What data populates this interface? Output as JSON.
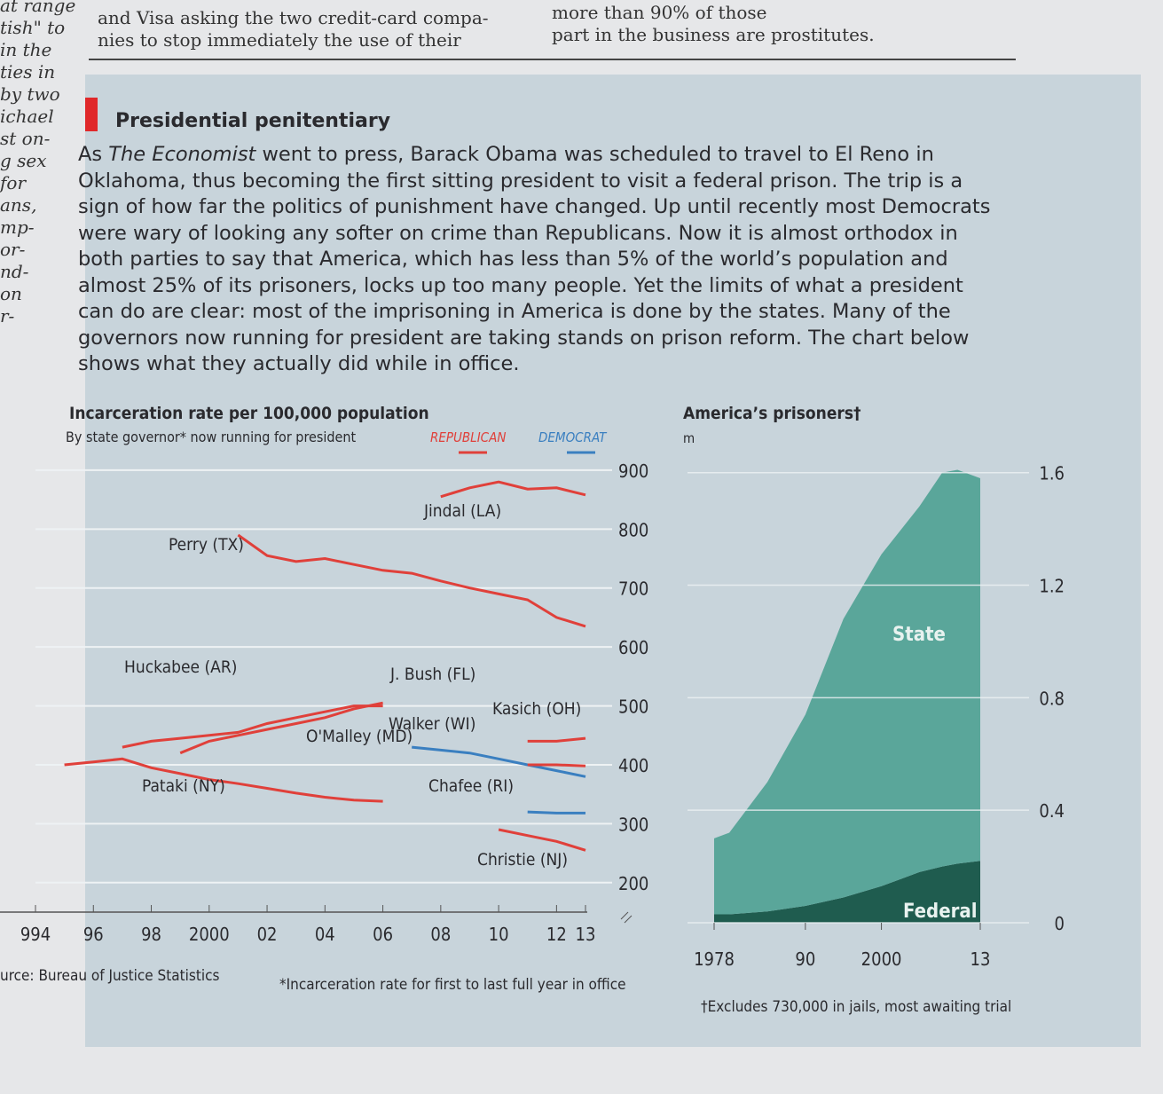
{
  "column_left": [
    "at range",
    "tish\" to",
    "in the",
    "ties in",
    "by two",
    "ichael",
    "st on-",
    "g sex",
    "for",
    "ans,",
    "mp-",
    "or-",
    "nd-",
    "on",
    "r-"
  ],
  "column_middle": [
    "and Visa asking the two credit-card compa-",
    "nies to stop immediately the use of their"
  ],
  "column_right": [
    "more than 90% of those",
    "part in the business are prostitutes."
  ],
  "article": {
    "title": "Presidential penitentiary",
    "body": [
      "As ",
      "The Economist",
      " went to press, Barack Obama was scheduled to travel to El Reno in Oklahoma, thus becoming the first sitting president to visit a federal prison. The trip is a sign of how far the politics of punishment have changed. Up until recently most Democrats were wary of looking any softer on crime than Republicans. Now it is almost orthodox in both parties to say that America, which has less than 5% of the world’s population and almost 25% of its prisoners, locks up too many people. Yet the limits of what a president can do are clear: most of the imprisoning in America is done by the states. Many of the governors now running for president are taking stands on prison reform. The chart below shows what they actually did while in office."
    ]
  },
  "chart_data": [
    {
      "type": "line",
      "title": "Incarceration rate per 100,000 population",
      "subtitle": "By state governor* now running for president",
      "legend": [
        {
          "name": "REPUBLICAN",
          "color": "#e0403a"
        },
        {
          "name": "DEMOCRAT",
          "color": "#3a7fc0"
        }
      ],
      "xlim": [
        1994,
        2013
      ],
      "xticks": [
        {
          "value": 1994,
          "label": "994"
        },
        {
          "value": 1996,
          "label": "96"
        },
        {
          "value": 1998,
          "label": "98"
        },
        2000,
        {
          "value": 2002,
          "label": "02"
        },
        {
          "value": 2004,
          "label": "04"
        },
        {
          "value": 2006,
          "label": "06"
        },
        {
          "value": 2008,
          "label": "08"
        },
        {
          "value": 2010,
          "label": "10"
        },
        {
          "value": 2012,
          "label": "12"
        },
        {
          "value": 2013,
          "label": "13"
        }
      ],
      "ylim": [
        150,
        930
      ],
      "yticks": [
        200,
        300,
        400,
        500,
        600,
        700,
        800,
        900
      ],
      "grid": true,
      "series": [
        {
          "name": "Jindal (LA)",
          "color": "#e0403a",
          "x": [
            2008,
            2009,
            2010,
            2011,
            2012,
            2013
          ],
          "values": [
            855,
            870,
            880,
            868,
            870,
            858
          ]
        },
        {
          "name": "Perry (TX)",
          "color": "#e0403a",
          "x": [
            2001,
            2002,
            2003,
            2004,
            2005,
            2006,
            2007,
            2008,
            2009,
            2010,
            2011,
            2012,
            2013
          ],
          "values": [
            790,
            755,
            745,
            750,
            740,
            730,
            725,
            712,
            700,
            690,
            680,
            650,
            635
          ]
        },
        {
          "name": "Huckabee (AR)",
          "color": "#e0403a",
          "x": [
            1997,
            1998,
            1999,
            2000,
            2001,
            2002,
            2003,
            2004,
            2005,
            2006
          ],
          "values": [
            430,
            440,
            445,
            450,
            455,
            470,
            480,
            490,
            500,
            500
          ]
        },
        {
          "name": "J. Bush (FL)",
          "color": "#e0403a",
          "x": [
            1999,
            2000,
            2001,
            2002,
            2003,
            2004,
            2005,
            2006
          ],
          "values": [
            420,
            440,
            450,
            460,
            470,
            480,
            495,
            505
          ]
        },
        {
          "name": "Pataki (NY)",
          "color": "#e0403a",
          "x": [
            1995,
            1996,
            1997,
            1998,
            1999,
            2000,
            2001,
            2002,
            2003,
            2004,
            2005,
            2006
          ],
          "values": [
            400,
            405,
            410,
            395,
            385,
            375,
            368,
            360,
            352,
            345,
            340,
            338
          ]
        },
        {
          "name": "O'Malley (MD)",
          "color": "#3a7fc0",
          "x": [
            2007,
            2008,
            2009,
            2010,
            2011,
            2012,
            2013
          ],
          "values": [
            430,
            425,
            420,
            410,
            400,
            390,
            380
          ]
        },
        {
          "name": "Walker (WI)",
          "color": "#e0403a",
          "x": [
            2011,
            2012,
            2013
          ],
          "values": [
            400,
            400,
            398
          ]
        },
        {
          "name": "Kasich (OH)",
          "color": "#e0403a",
          "x": [
            2011,
            2012,
            2013
          ],
          "values": [
            440,
            440,
            445
          ]
        },
        {
          "name": "Chafee (RI)",
          "color": "#3a7fc0",
          "x": [
            2011,
            2012,
            2013
          ],
          "values": [
            320,
            318,
            318
          ]
        },
        {
          "name": "Christie (NJ)",
          "color": "#e0403a",
          "x": [
            2010,
            2011,
            2012,
            2013
          ],
          "values": [
            290,
            280,
            270,
            255
          ]
        }
      ]
    },
    {
      "type": "area",
      "title": "America’s prisoners†",
      "unit": "m",
      "stacked": true,
      "x": [
        1978,
        1980,
        1985,
        1990,
        1995,
        2000,
        2005,
        2008,
        2010,
        2013
      ],
      "xlim": [
        1978,
        2013
      ],
      "xticks": [
        1978,
        {
          "value": 1990,
          "label": "90"
        },
        2000,
        {
          "value": 2013,
          "label": "13"
        }
      ],
      "ylim": [
        0,
        1.7
      ],
      "yticks": [
        0,
        0.4,
        0.8,
        1.2,
        1.6
      ],
      "grid": true,
      "series": [
        {
          "name": "Federal",
          "color": "#1f5c4f",
          "values": [
            0.03,
            0.03,
            0.04,
            0.06,
            0.09,
            0.13,
            0.18,
            0.2,
            0.21,
            0.22
          ]
        },
        {
          "name": "State",
          "color": "#5aa69a",
          "values": [
            0.27,
            0.29,
            0.46,
            0.68,
            0.99,
            1.18,
            1.3,
            1.4,
            1.4,
            1.36
          ]
        }
      ]
    }
  ],
  "footer": {
    "source": "urce: Bureau of Justice Statistics",
    "note1": "*Incarceration rate for first to last full year in office",
    "note2": "†Excludes 730,000 in jails, most awaiting trial"
  }
}
